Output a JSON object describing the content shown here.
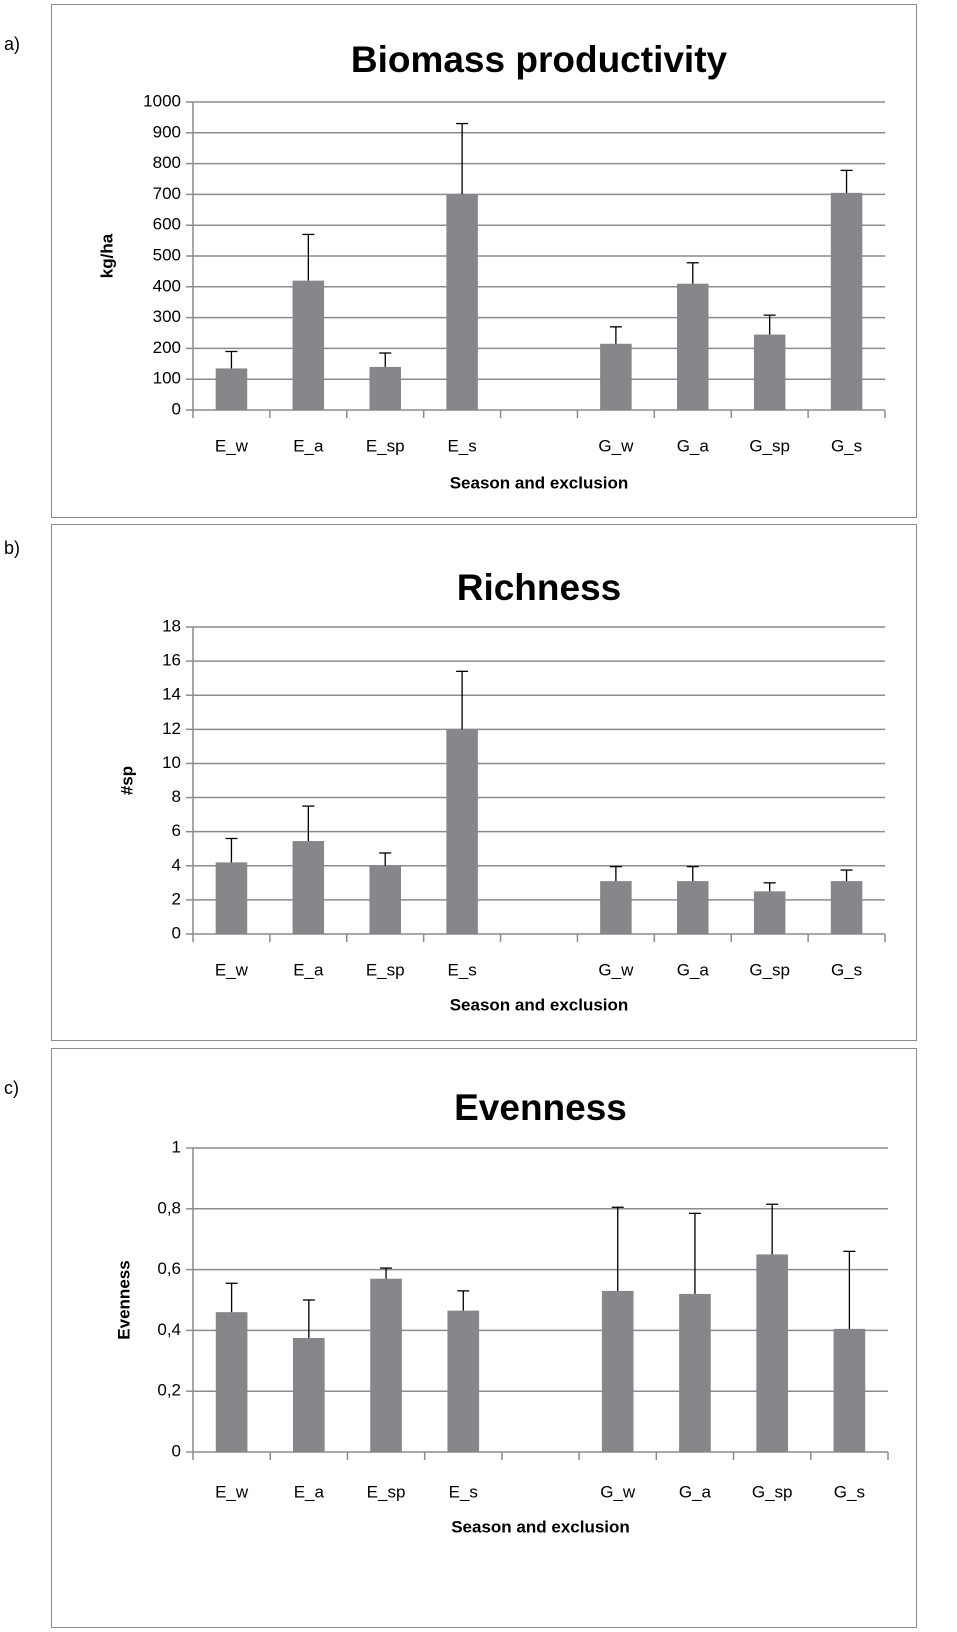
{
  "colors": {
    "bar": "#87878b",
    "grid": "#8c8c8c",
    "error": "#000000",
    "frame": "#8c8c8c"
  },
  "chart_data": [
    {
      "panel_label": "a)",
      "type": "bar",
      "title": "Biomass productivity",
      "xlabel": "Season and exclusion",
      "ylabel": "kg/ha",
      "ylim": [
        0,
        1000
      ],
      "yticks": [
        0,
        100,
        200,
        300,
        400,
        500,
        600,
        700,
        800,
        900,
        1000
      ],
      "ytick_labels": [
        "0",
        "100",
        "200",
        "300",
        "400",
        "500",
        "600",
        "700",
        "800",
        "900",
        "1000"
      ],
      "grid": true,
      "categories": [
        "E_w",
        "E_a",
        "E_sp",
        "E_s",
        "",
        "G_w",
        "G_a",
        "G_sp",
        "G_s"
      ],
      "values": [
        135,
        420,
        140,
        700,
        null,
        215,
        410,
        245,
        705
      ],
      "error_upper": [
        190,
        570,
        185,
        930,
        null,
        270,
        478,
        308,
        778
      ]
    },
    {
      "panel_label": "b)",
      "type": "bar",
      "title": "Richness",
      "xlabel": "Season and exclusion",
      "ylabel": "#sp",
      "ylim": [
        0,
        18
      ],
      "yticks": [
        0,
        2,
        4,
        6,
        8,
        10,
        12,
        14,
        16,
        18
      ],
      "ytick_labels": [
        "0",
        "2",
        "4",
        "6",
        "8",
        "10",
        "12",
        "14",
        "16",
        "18"
      ],
      "grid": true,
      "categories": [
        "E_w",
        "E_a",
        "E_sp",
        "E_s",
        "",
        "G_w",
        "G_a",
        "G_sp",
        "G_s"
      ],
      "values": [
        4.2,
        5.45,
        4.0,
        12.0,
        null,
        3.1,
        3.1,
        2.5,
        3.1
      ],
      "error_upper": [
        5.6,
        7.5,
        4.75,
        15.4,
        null,
        3.95,
        3.95,
        3.0,
        3.75
      ]
    },
    {
      "panel_label": "c)",
      "type": "bar",
      "title": "Evenness",
      "xlabel": "Season and exclusion",
      "ylabel": "Evenness",
      "ylim": [
        0,
        1
      ],
      "yticks": [
        0,
        0.2,
        0.4,
        0.6,
        0.8,
        1
      ],
      "ytick_labels": [
        "0",
        "0,2",
        "0,4",
        "0,6",
        "0,8",
        "1"
      ],
      "grid": true,
      "categories": [
        "E_w",
        "E_a",
        "E_sp",
        "E_s",
        "",
        "G_w",
        "G_a",
        "G_sp",
        "G_s"
      ],
      "values": [
        0.46,
        0.375,
        0.57,
        0.465,
        null,
        0.53,
        0.52,
        0.65,
        0.405
      ],
      "error_upper": [
        0.555,
        0.5,
        0.605,
        0.53,
        null,
        0.805,
        0.785,
        0.815,
        0.66
      ]
    }
  ]
}
